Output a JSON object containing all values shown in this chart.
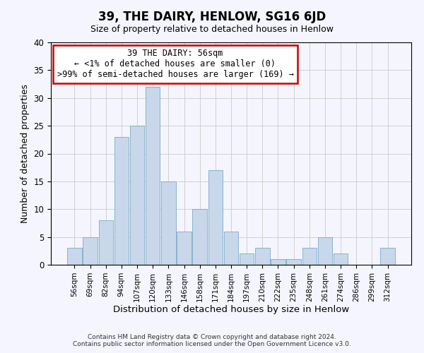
{
  "title": "39, THE DAIRY, HENLOW, SG16 6JD",
  "subtitle": "Size of property relative to detached houses in Henlow",
  "xlabel": "Distribution of detached houses by size in Henlow",
  "ylabel": "Number of detached properties",
  "bar_labels": [
    "56sqm",
    "69sqm",
    "82sqm",
    "94sqm",
    "107sqm",
    "120sqm",
    "133sqm",
    "146sqm",
    "158sqm",
    "171sqm",
    "184sqm",
    "197sqm",
    "210sqm",
    "222sqm",
    "235sqm",
    "248sqm",
    "261sqm",
    "274sqm",
    "286sqm",
    "299sqm",
    "312sqm"
  ],
  "bar_values": [
    3,
    5,
    8,
    23,
    25,
    32,
    15,
    6,
    10,
    17,
    6,
    2,
    3,
    1,
    1,
    3,
    5,
    2,
    0,
    0,
    3
  ],
  "bar_color": "#c8d8ea",
  "bar_edge_color": "#7aaac8",
  "annotation_line1": "39 THE DAIRY: 56sqm",
  "annotation_line2": "← <1% of detached houses are smaller (0)",
  "annotation_line3": ">99% of semi-detached houses are larger (169) →",
  "annotation_box_edge_color": "#cc0000",
  "annotation_box_face_color": "#ffffff",
  "ylim": [
    0,
    40
  ],
  "yticks": [
    0,
    5,
    10,
    15,
    20,
    25,
    30,
    35,
    40
  ],
  "footer_line1": "Contains HM Land Registry data © Crown copyright and database right 2024.",
  "footer_line2": "Contains public sector information licensed under the Open Government Licence v3.0.",
  "grid_color": "#d0d0d0",
  "background_color": "#f5f5ff"
}
